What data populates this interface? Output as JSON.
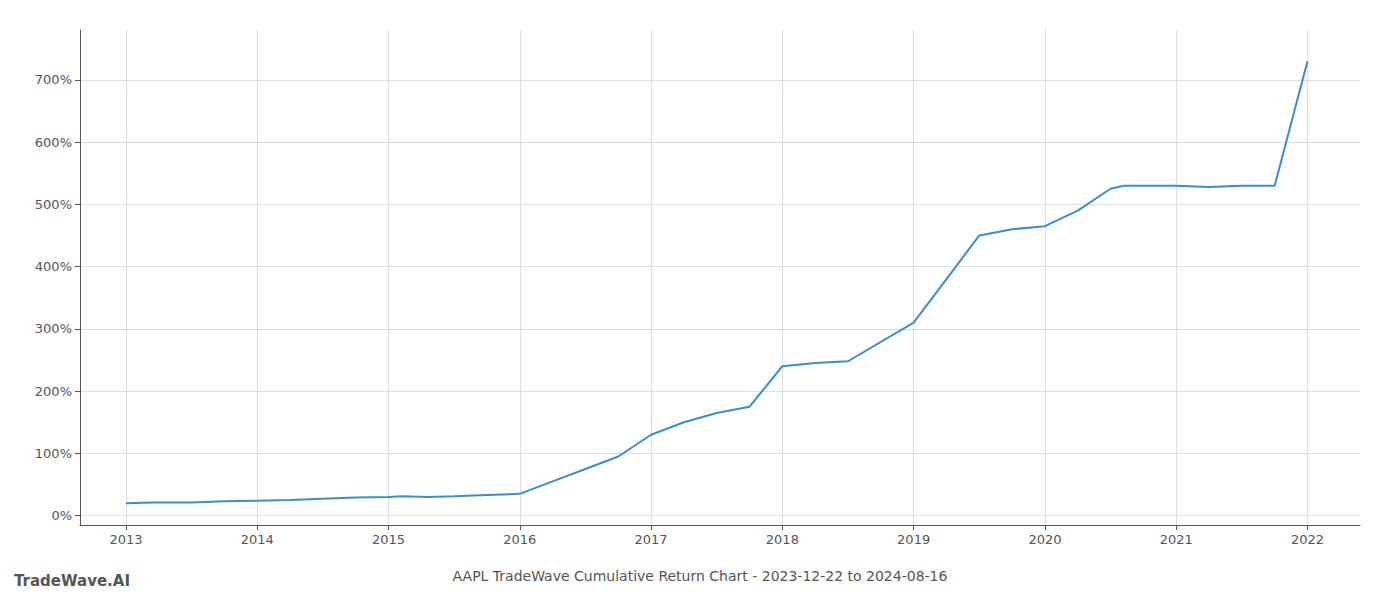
{
  "chart_data": {
    "type": "line",
    "title": "AAPL TradeWave Cumulative Return Chart - 2023-12-22 to 2024-08-16",
    "annotations": [
      "TradeWave.AI"
    ],
    "x": [
      2013.0,
      2013.2,
      2013.5,
      2013.75,
      2014.0,
      2014.25,
      2014.5,
      2014.75,
      2015.0,
      2015.1,
      2015.3,
      2015.5,
      2015.75,
      2016.0,
      2016.25,
      2016.5,
      2016.75,
      2017.0,
      2017.25,
      2017.5,
      2017.75,
      2018.0,
      2018.25,
      2018.5,
      2019.0,
      2019.25,
      2019.5,
      2019.75,
      2020.0,
      2020.25,
      2020.5,
      2020.6,
      2021.0,
      2021.25,
      2021.5,
      2021.75,
      2022.0
    ],
    "values": [
      20,
      21,
      21,
      23,
      24,
      25,
      27,
      29,
      30,
      31,
      30,
      31,
      33,
      35,
      55,
      75,
      95,
      130,
      150,
      165,
      175,
      240,
      245,
      248,
      310,
      380,
      450,
      460,
      465,
      490,
      525,
      530,
      530,
      528,
      530,
      530,
      730
    ],
    "color": "#3a8fc7",
    "xlim": [
      2012.65,
      2022.4
    ],
    "xticks": [
      2013,
      2014,
      2015,
      2016,
      2017,
      2018,
      2019,
      2020,
      2021,
      2022
    ],
    "ylim": [
      -15,
      780
    ],
    "yticks": [
      {
        "value": 0,
        "label": "0%"
      },
      {
        "value": 100,
        "label": "100%"
      },
      {
        "value": 200,
        "label": "200%"
      },
      {
        "value": 300,
        "label": "300%"
      },
      {
        "value": 400,
        "label": "400%"
      },
      {
        "value": 500,
        "label": "500%"
      },
      {
        "value": 600,
        "label": "600%"
      },
      {
        "value": 700,
        "label": "700%"
      }
    ],
    "grid": true
  }
}
